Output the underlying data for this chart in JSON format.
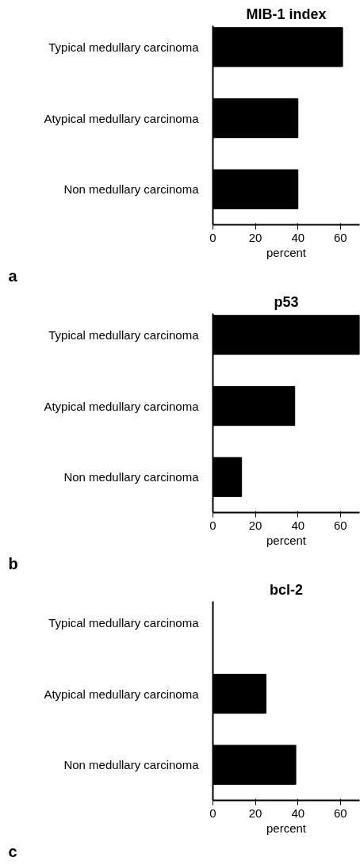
{
  "chart_data": [
    {
      "type": "bar",
      "orientation": "horizontal",
      "title": "MIB-1 index",
      "xlabel": "percent",
      "categories": [
        "Typical medullary carcinoma",
        "Atypical medullary carcinoma",
        "Non medullary carcinoma"
      ],
      "values": [
        61,
        40,
        40
      ],
      "color": "#000000",
      "xlim": [
        0,
        69
      ],
      "xticks": [
        0,
        20,
        40,
        60
      ],
      "annotations": [
        "a"
      ]
    },
    {
      "type": "bar",
      "orientation": "horizontal",
      "title": "p53",
      "xlabel": "percent",
      "categories": [
        "Typical medullary carcinoma",
        "Atypical medullary carcinoma",
        "Non medullary carcinoma"
      ],
      "values": [
        69,
        38.5,
        13.5
      ],
      "color": "#000000",
      "xlim": [
        0,
        69
      ],
      "xticks": [
        0,
        20,
        40,
        60
      ],
      "annotations": [
        "b"
      ]
    },
    {
      "type": "bar",
      "orientation": "horizontal",
      "title": "bcl-2",
      "xlabel": "percent",
      "categories": [
        "Typical medullary carcinoma",
        "Atypical medullary carcinoma",
        "Non medullary carcinoma"
      ],
      "values": [
        0,
        25,
        39
      ],
      "color": "#000000",
      "xlim": [
        0,
        69
      ],
      "xticks": [
        0,
        20,
        40,
        60
      ],
      "annotations": [
        "c"
      ]
    }
  ]
}
